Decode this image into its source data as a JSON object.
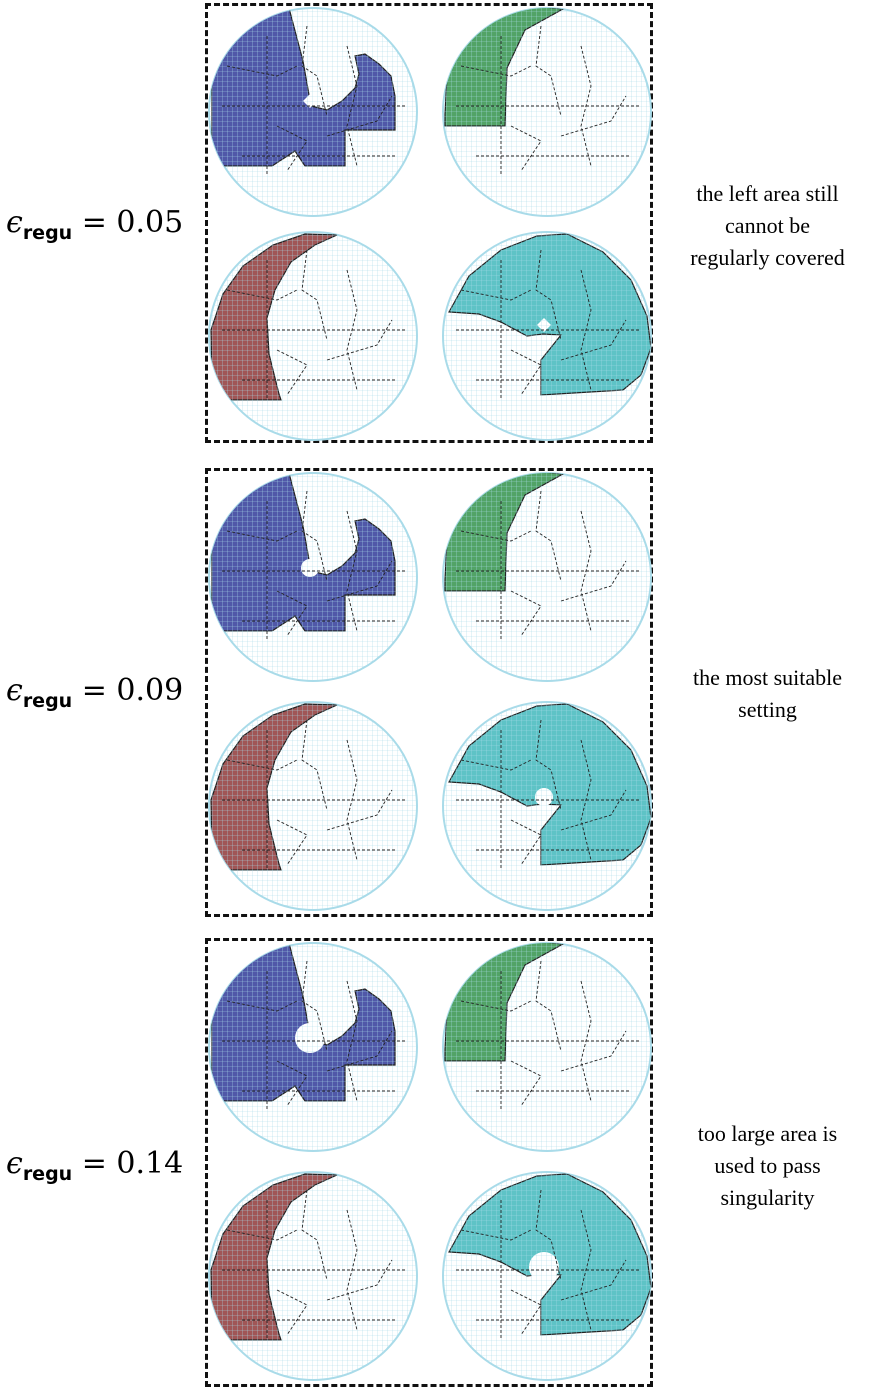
{
  "rows": [
    {
      "epsilon_symbol": "ϵ",
      "subscript": "regu",
      "equals": " = ",
      "value": "0.05",
      "note_lines": [
        "the left area still",
        "cannot be",
        "regularly covered"
      ],
      "hole": "cross"
    },
    {
      "epsilon_symbol": "ϵ",
      "subscript": "regu",
      "equals": " = ",
      "value": "0.09",
      "note_lines": [
        "the most suitable",
        "setting"
      ],
      "hole": "small"
    },
    {
      "epsilon_symbol": "ϵ",
      "subscript": "regu",
      "equals": " = ",
      "value": "0.14",
      "note_lines": [
        "too large area is",
        "used to pass",
        "singularity"
      ],
      "hole": "large"
    }
  ],
  "colors": {
    "blue_region": "#5058a8",
    "green_region": "#52a366",
    "red_region": "#a05656",
    "cyan_region": "#5ec3c6",
    "grid_line": "#a9dbe9",
    "boundary": "#222222"
  }
}
